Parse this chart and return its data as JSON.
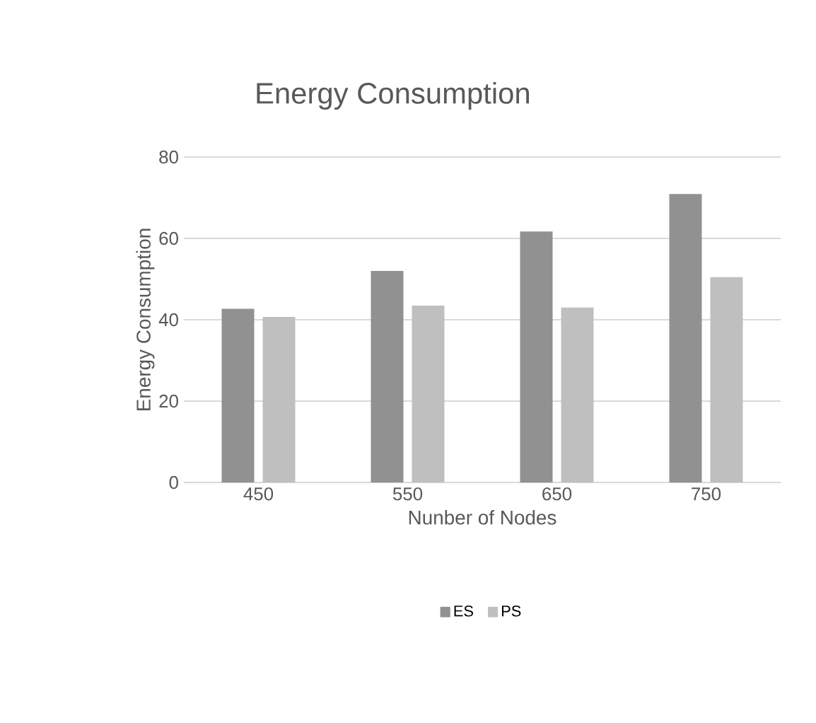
{
  "chart_data": {
    "type": "bar",
    "title": "Energy Consumption",
    "xlabel": "Nunber of Nodes",
    "ylabel": "Energy Consumption",
    "categories": [
      "450",
      "550",
      "650",
      "750"
    ],
    "series": [
      {
        "name": "ES",
        "color": "#919191",
        "values": [
          42.7,
          52.0,
          61.7,
          70.9
        ]
      },
      {
        "name": "PS",
        "color": "#bfbfbf",
        "values": [
          40.7,
          43.5,
          43.0,
          50.5
        ]
      }
    ],
    "ylim": [
      0,
      80
    ],
    "yticks": [
      0,
      20,
      40,
      60,
      80
    ],
    "grid": "y",
    "legend": "bottom"
  }
}
